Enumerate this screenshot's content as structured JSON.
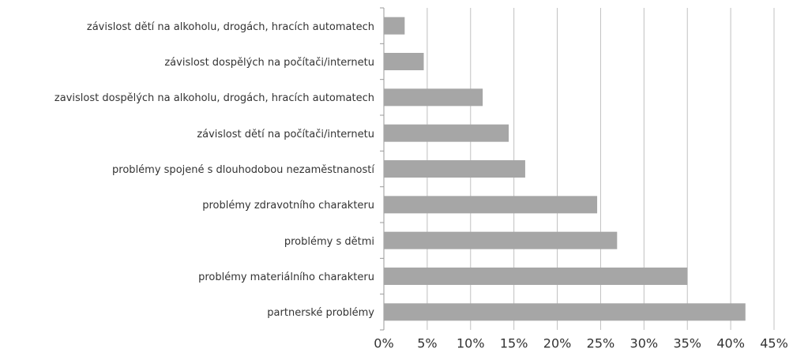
{
  "chart_data": {
    "type": "bar",
    "orientation": "horizontal",
    "categories": [
      "závislost dětí na alkoholu, drogách, hracích automatech",
      "závislost dospělých na počítači/internetu",
      "zavislost dospělých na alkoholu, drogách, hracích automatech",
      "závislost dětí na počítači/internetu",
      "problémy spojené s dlouhodobou nezaměstnaností",
      "problémy zdravotního charakteru",
      "problémy s dětmi",
      "problémy materiálního charakteru",
      "partnerské problémy"
    ],
    "values": [
      2.4,
      4.6,
      11.4,
      14.4,
      16.3,
      24.6,
      26.9,
      35.0,
      41.7
    ],
    "color": "#a6a6a6",
    "xlim": [
      0,
      45
    ],
    "xticks": [
      {
        "value": 0,
        "label": "0%"
      },
      {
        "value": 5,
        "label": "5%"
      },
      {
        "value": 10,
        "label": "10%"
      },
      {
        "value": 15,
        "label": "15%"
      },
      {
        "value": 20,
        "label": "20%"
      },
      {
        "value": 25,
        "label": "25%"
      },
      {
        "value": 30,
        "label": "30%"
      },
      {
        "value": 35,
        "label": "35%"
      },
      {
        "value": 40,
        "label": "40%"
      },
      {
        "value": 45,
        "label": "45%"
      }
    ],
    "grid": true
  }
}
